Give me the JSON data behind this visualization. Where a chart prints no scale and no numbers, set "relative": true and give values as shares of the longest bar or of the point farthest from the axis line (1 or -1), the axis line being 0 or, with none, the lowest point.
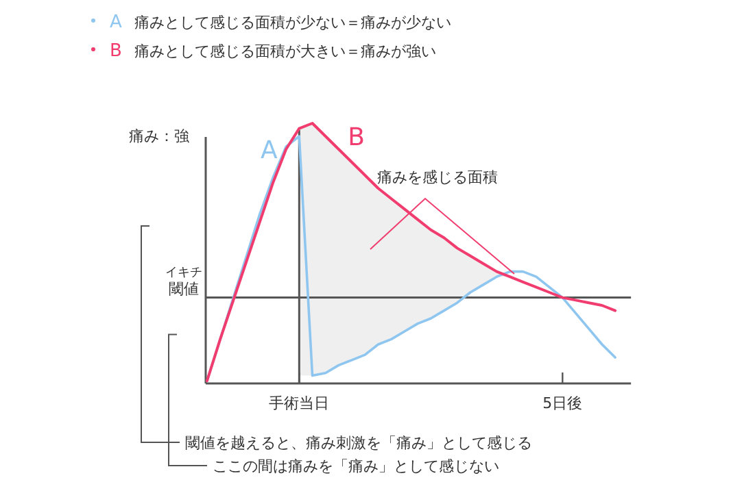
{
  "chart_data": {
    "type": "line",
    "relative": true,
    "ylabel": "痛み：強",
    "legend": "top left",
    "marker": "none",
    "grid": false,
    "categories": [
      null,
      null,
      null,
      null,
      null,
      null,
      null,
      "手術当日",
      null,
      null,
      null,
      null,
      null,
      null,
      null,
      null,
      null,
      null,
      null,
      null,
      null,
      null,
      null,
      null,
      null,
      null,
      null,
      "5日後",
      null,
      null,
      null,
      null,
      null
    ],
    "series": [
      {
        "name": "A",
        "color": "#8ec6f0",
        "values": [
          0.01,
          0.17,
          0.33,
          0.49,
          0.65,
          0.79,
          0.91,
          0.95,
          0.03,
          0.04,
          0.07,
          0.09,
          0.11,
          0.15,
          0.17,
          0.2,
          0.23,
          0.25,
          0.28,
          0.31,
          0.35,
          0.38,
          0.41,
          0.43,
          0.43,
          0.41,
          0.37,
          0.33,
          0.27,
          0.21,
          0.15,
          0.1,
          null
        ]
      },
      {
        "name": "B",
        "color": "#f03c6e",
        "values": [
          0.01,
          0.17,
          0.32,
          0.47,
          0.62,
          0.77,
          0.9,
          0.98,
          1,
          0.95,
          0.9,
          0.85,
          0.8,
          0.75,
          0.71,
          0.67,
          0.63,
          0.59,
          0.56,
          0.52,
          0.49,
          0.46,
          0.43,
          0.41,
          0.39,
          0.37,
          0.35,
          0.33,
          0.32,
          0.31,
          0.3,
          0.28,
          null
        ],
        "lower": [
          null,
          null,
          null,
          null,
          null,
          null,
          null,
          0.03,
          0.03,
          0.04,
          0.07,
          0.09,
          0.11,
          0.15,
          0.17,
          0.2,
          0.23,
          0.25,
          0.28,
          0.31,
          0.35,
          0.38,
          0.41,
          0.41,
          0.39,
          0.37,
          0.35,
          0.33,
          null,
          null,
          null,
          null,
          null
        ],
        "upper": [
          null,
          null,
          null,
          null,
          null,
          null,
          null,
          0.98,
          1,
          0.95,
          0.9,
          0.85,
          0.8,
          0.75,
          0.71,
          0.67,
          0.63,
          0.59,
          0.56,
          0.52,
          0.49,
          0.46,
          0.43,
          0.41,
          0.39,
          0.37,
          0.35,
          0.33,
          null,
          null,
          null,
          null,
          null
        ]
      }
    ],
    "ref_lines": [
      {
        "axis": "y",
        "value": 0.33,
        "label": "閾値",
        "color": "#555555"
      },
      {
        "axis": "x",
        "value": "手術当日",
        "color": "#555555"
      }
    ],
    "annotations": [
      "痛みとして感じる面積が少ない＝痛みが少ない",
      "痛みとして感じる面積が大きい＝痛みが強い",
      "痛みを感じる面積",
      "閾値を越えると、痛み刺激を「痛み」として感じる",
      "ここの間は痛みを「痛み」として感じない",
      "イキチ"
    ]
  }
}
